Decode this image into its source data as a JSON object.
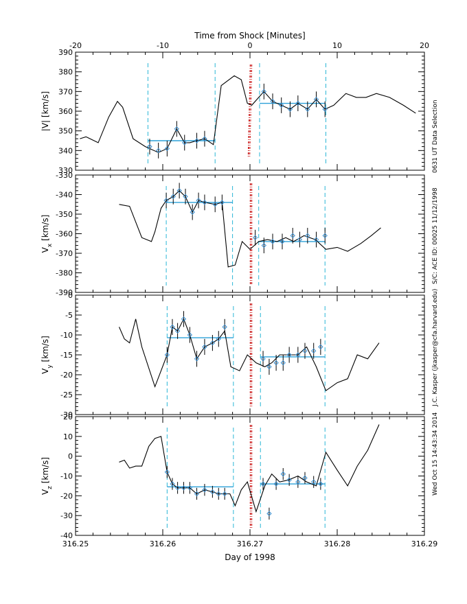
{
  "chart_data": {
    "type": "line",
    "xlabel": "Day of 1998",
    "top_axis_label": "Time from Shock [Minutes]",
    "x_ticks": [
      "316.25",
      "316.26",
      "316.27",
      "316.28",
      "316.29"
    ],
    "xlim": [
      316.25,
      316.29
    ],
    "top_ticks": [
      "-20",
      "-10",
      "0",
      "10",
      "20"
    ],
    "top_xlim": [
      -20,
      20
    ],
    "shock_time": 316.2701,
    "side_texts": [
      "0631 UT Data Selection",
      "S/C: ACE ID: 00025 11/12/1998",
      "J.C. Kasper (jkasper@cfa.harvard.edu)",
      "Wed Oct 15 14:43:34 2014"
    ],
    "colors": {
      "line": "#000000",
      "fit": "#2aa0d8",
      "boundary": "#29b6d6",
      "shock": "#cc2222",
      "marker": "#3a8fd0"
    },
    "panels": [
      {
        "ylabel": "|V| [km/s]",
        "ylim": [
          330,
          390
        ],
        "yticks": [
          "330",
          "340",
          "350",
          "360",
          "370",
          "380",
          "390"
        ],
        "x": [
          316.2505,
          316.2512,
          316.2526,
          316.2538,
          316.2548,
          316.2554,
          316.2566,
          316.258,
          316.2595,
          316.2605,
          316.2616,
          316.2625,
          316.2631,
          316.2639,
          316.2648,
          316.2658,
          316.2667,
          316.2682,
          316.269,
          316.2697,
          316.2702,
          316.2716,
          316.2726,
          316.2736,
          316.2746,
          316.2755,
          316.2766,
          316.2776,
          316.2786,
          316.2796,
          316.281,
          316.2822,
          316.2833,
          316.2845,
          316.286,
          316.2876,
          316.289
        ],
        "y": [
          346,
          347,
          344,
          357,
          365,
          362,
          346,
          342,
          339,
          341,
          351,
          344,
          344,
          345,
          346,
          343,
          373,
          378,
          376,
          364,
          363,
          370,
          365,
          363,
          361,
          364,
          361,
          366,
          361,
          363,
          369,
          367,
          367,
          369,
          367,
          363,
          359
        ],
        "markers": {
          "x": [
            316.2585,
            316.2595,
            316.2605,
            316.2616,
            316.2625,
            316.2639,
            316.2648,
            316.2716,
            316.2726,
            316.2736,
            316.2746,
            316.2755,
            316.2766,
            316.2776,
            316.2786
          ],
          "y": [
            342,
            340,
            341,
            351,
            344,
            345,
            346,
            370,
            365,
            363,
            361,
            364,
            361,
            366,
            361
          ],
          "err": [
            4,
            4,
            4,
            4,
            4,
            4,
            4,
            4,
            4,
            4,
            4,
            4,
            4,
            4,
            4
          ]
        },
        "upstream_mean": 345,
        "downstream_mean": 364,
        "upstream_window": [
          316.2583,
          316.266
        ],
        "downstream_window": [
          316.2711,
          316.2787
        ]
      },
      {
        "ylabel": "V_x [km/s]",
        "ylim": [
          -390,
          -330
        ],
        "yticks": [
          "-390",
          "-380",
          "-370",
          "-360",
          "-350",
          "-340",
          "-330"
        ],
        "x": [
          316.255,
          316.2562,
          316.2576,
          316.2587,
          316.2591,
          316.2598,
          316.2604,
          316.2612,
          316.2619,
          316.2626,
          316.2634,
          316.2641,
          316.2648,
          316.266,
          316.2668,
          316.2675,
          316.2683,
          316.2691,
          316.27,
          316.271,
          316.272,
          316.2731,
          316.2741,
          316.275,
          316.2762,
          316.2775,
          316.2787,
          316.28,
          316.2812,
          316.2827,
          316.2839,
          316.285
        ],
        "y": [
          -345,
          -346,
          -362,
          -364,
          -359,
          -347,
          -343,
          -341,
          -338,
          -341,
          -349,
          -343,
          -344,
          -345,
          -344,
          -377,
          -376,
          -364,
          -368,
          -364,
          -363,
          -364,
          -362,
          -364,
          -361,
          -363,
          -368,
          -367,
          -369,
          -365,
          -361,
          -357
        ],
        "markers": {
          "x": [
            316.2604,
            316.2612,
            316.2619,
            316.2626,
            316.2634,
            316.2641,
            316.2648,
            316.266,
            316.2668,
            316.2706,
            316.2716,
            316.2726,
            316.2737,
            316.2749,
            316.2757,
            316.2766,
            316.2776,
            316.2786
          ],
          "y": [
            -343,
            -341,
            -338,
            -341,
            -349,
            -343,
            -344,
            -345,
            -344,
            -362,
            -366,
            -364,
            -364,
            -361,
            -363,
            -361,
            -363,
            -361
          ],
          "err": [
            4,
            4,
            4,
            4,
            4,
            4,
            4,
            4,
            4,
            4,
            4,
            4,
            4,
            4,
            4,
            4,
            4,
            4
          ]
        },
        "upstream_mean": -344,
        "downstream_mean": -364,
        "upstream_window": [
          316.2604,
          316.268
        ],
        "downstream_window": [
          316.271,
          316.2786
        ]
      },
      {
        "ylabel": "V_y [km/s]",
        "ylim": [
          -30,
          0
        ],
        "yticks": [
          "-30",
          "-25",
          "-20",
          "-15",
          "-10",
          "-5",
          "0"
        ],
        "x": [
          316.255,
          316.2556,
          316.2562,
          316.2569,
          316.2576,
          316.2591,
          316.2598,
          316.2605,
          316.2611,
          316.2617,
          316.2624,
          316.2631,
          316.2639,
          316.2648,
          316.2657,
          316.2664,
          316.2671,
          316.2678,
          316.2688,
          316.2697,
          316.2707,
          316.2717,
          316.2725,
          316.2734,
          316.2744,
          316.2755,
          316.2765,
          316.2776,
          316.2787,
          316.28,
          316.2812,
          316.2823,
          316.2835,
          316.2848
        ],
        "y": [
          -8,
          -11,
          -12,
          -6,
          -13,
          -23,
          -19,
          -15,
          -8,
          -9,
          -6,
          -10,
          -16,
          -13,
          -12,
          -11,
          -9,
          -18,
          -19,
          -15,
          -17,
          -18,
          -17,
          -15,
          -15,
          -15,
          -13,
          -18,
          -24,
          -22,
          -21,
          -15,
          -16,
          -12
        ],
        "markers": {
          "x": [
            316.2605,
            316.2611,
            316.2617,
            316.2624,
            316.2631,
            316.2639,
            316.2648,
            316.2657,
            316.2664,
            316.2671,
            316.2715,
            316.2722,
            316.273,
            316.2738,
            316.2745,
            316.2755,
            316.2763,
            316.2773,
            316.2781
          ],
          "y": [
            -15,
            -8,
            -9,
            -6,
            -10,
            -16,
            -13,
            -12,
            -11,
            -8,
            -16,
            -18,
            -17,
            -17,
            -15,
            -15,
            -14,
            -14,
            -13
          ],
          "err": [
            2,
            2,
            2,
            2,
            2,
            2,
            2,
            2,
            2,
            2,
            2,
            2,
            2,
            2,
            2,
            2,
            2,
            2,
            2
          ]
        },
        "upstream_mean": -10.7,
        "downstream_mean": -15.5,
        "upstream_window": [
          316.2605,
          316.2681
        ],
        "downstream_window": [
          316.2712,
          316.2786
        ]
      },
      {
        "ylabel": "V_z [km/s]",
        "ylim": [
          -40,
          20
        ],
        "yticks": [
          "-40",
          "-30",
          "-20",
          "-10",
          "0",
          "10",
          "20"
        ],
        "x": [
          316.255,
          316.2556,
          316.2562,
          316.2569,
          316.2576,
          316.2584,
          316.2591,
          316.2598,
          316.2605,
          316.2611,
          316.2617,
          316.2624,
          316.2631,
          316.2639,
          316.2648,
          316.2657,
          316.2664,
          316.2671,
          316.2677,
          316.2683,
          316.269,
          316.2697,
          316.2707,
          316.2717,
          316.2725,
          316.2734,
          316.2744,
          316.2755,
          316.2765,
          316.2776,
          316.2787,
          316.28,
          316.2812,
          316.2823,
          316.2835,
          316.2848
        ],
        "y": [
          -3,
          -2,
          -6,
          -5,
          -5,
          5,
          9,
          10,
          -8,
          -14,
          -16,
          -16,
          -16,
          -19,
          -17,
          -18,
          -19,
          -19,
          -19,
          -25,
          -17,
          -13,
          -28,
          -15,
          -9,
          -13,
          -12,
          -10,
          -13,
          -15,
          2,
          -7,
          -15,
          -5,
          3,
          16
        ],
        "markers": {
          "x": [
            316.2605,
            316.2611,
            316.2617,
            316.2624,
            316.2631,
            316.2639,
            316.2648,
            316.2657,
            316.2664,
            316.2671,
            316.2715,
            316.2722,
            316.273,
            316.2738,
            316.2745,
            316.2755,
            316.2763,
            316.2773,
            316.2781
          ],
          "y": [
            -8,
            -14,
            -16,
            -16,
            -16,
            -19,
            -17,
            -18,
            -19,
            -19,
            -14,
            -29,
            -14,
            -9,
            -12,
            -13,
            -11,
            -13,
            -14
          ],
          "err": [
            3,
            3,
            3,
            3,
            3,
            3,
            3,
            3,
            3,
            3,
            3,
            3,
            3,
            3,
            3,
            3,
            3,
            3,
            3
          ]
        },
        "upstream_mean": -15.5,
        "downstream_mean": -14,
        "upstream_window": [
          316.2605,
          316.2681
        ],
        "downstream_window": [
          316.2712,
          316.2786
        ]
      }
    ]
  }
}
